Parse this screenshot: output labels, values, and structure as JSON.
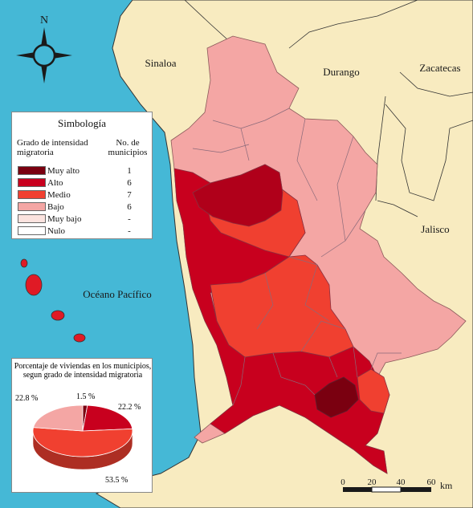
{
  "compass": {
    "north": "N"
  },
  "places": {
    "sinaloa": "Sinaloa",
    "durango": "Durango",
    "zacatecas": "Zacatecas",
    "jalisco": "Jalisco",
    "ocean": "Océano Pacífico"
  },
  "legend": {
    "title": "Simbología",
    "col1": "Grado de intensidad migratoria",
    "col2": "No. de municipios",
    "rows": [
      {
        "label": "Muy alto",
        "count": "1",
        "color": "#7a0010"
      },
      {
        "label": "Alto",
        "count": "6",
        "color": "#c8001e"
      },
      {
        "label": "Medio",
        "count": "7",
        "color": "#f04030"
      },
      {
        "label": "Bajo",
        "count": "6",
        "color": "#f4a6a4"
      },
      {
        "label": "Muy bajo",
        "count": "-",
        "color": "#fbe3df"
      },
      {
        "label": "Nulo",
        "count": "-",
        "color": "#ffffff"
      }
    ]
  },
  "pie": {
    "title": "Porcentaje de viviendas en los municipios, segun grado de intensidad migratoria",
    "slices": [
      {
        "label": "1.5 %",
        "value": 1.5,
        "color": "#7a0010"
      },
      {
        "label": "22.2 %",
        "value": 22.2,
        "color": "#c8001e"
      },
      {
        "label": "53.5 %",
        "value": 53.5,
        "color": "#f04030"
      },
      {
        "label": "22.8 %",
        "value": 22.8,
        "color": "#f4a6a4"
      }
    ]
  },
  "scale": {
    "ticks": [
      "0",
      "20",
      "40",
      "60"
    ],
    "unit": "km"
  },
  "colors": {
    "sea": "#45b8d6",
    "land": "#f8ebc0"
  }
}
